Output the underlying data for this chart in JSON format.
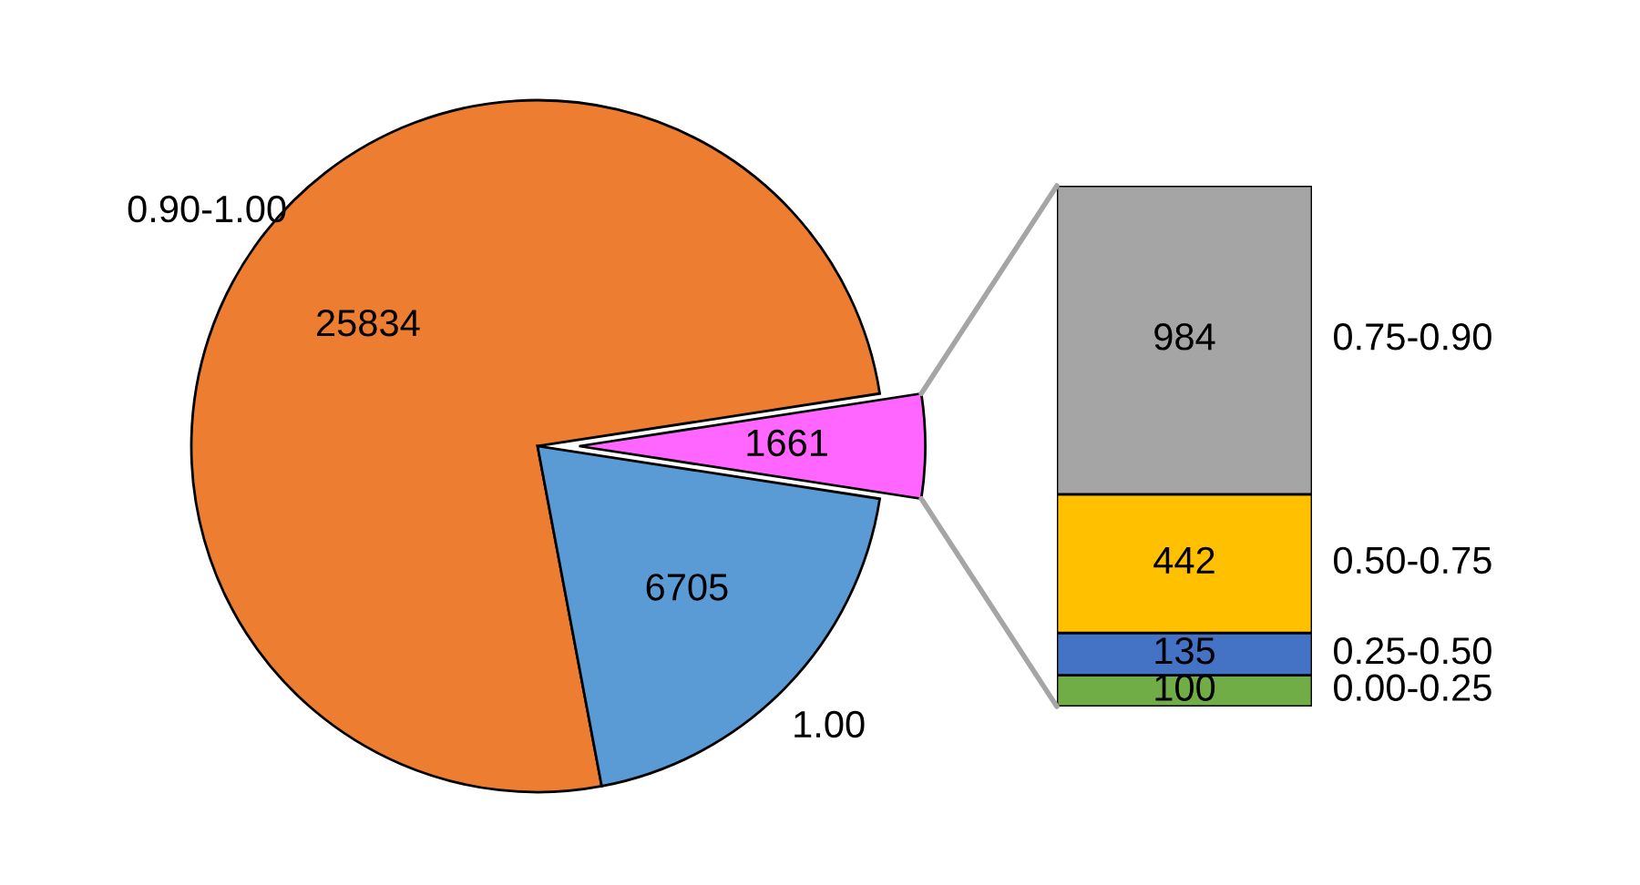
{
  "chart_data": [
    {
      "type": "pie",
      "categories": [
        "0.90-1.00",
        "1.00",
        null
      ],
      "values": [
        25834,
        6705,
        1661
      ],
      "colors": [
        "#ed7d31",
        "#5b9bd5",
        "#ff66ff"
      ],
      "data_labels": true
    },
    {
      "type": "bar",
      "stacked": true,
      "categories": [
        null
      ],
      "data_labels": true,
      "series": [
        {
          "name": "0.00-0.25",
          "color": "#70ad47",
          "values": [
            100
          ]
        },
        {
          "name": "0.25-0.50",
          "color": "#4472c4",
          "values": [
            135
          ]
        },
        {
          "name": "0.50-0.75",
          "color": "#ffc000",
          "values": [
            442
          ]
        },
        {
          "name": "0.75-0.90",
          "color": "#a5a5a5",
          "values": [
            984
          ]
        }
      ]
    }
  ]
}
